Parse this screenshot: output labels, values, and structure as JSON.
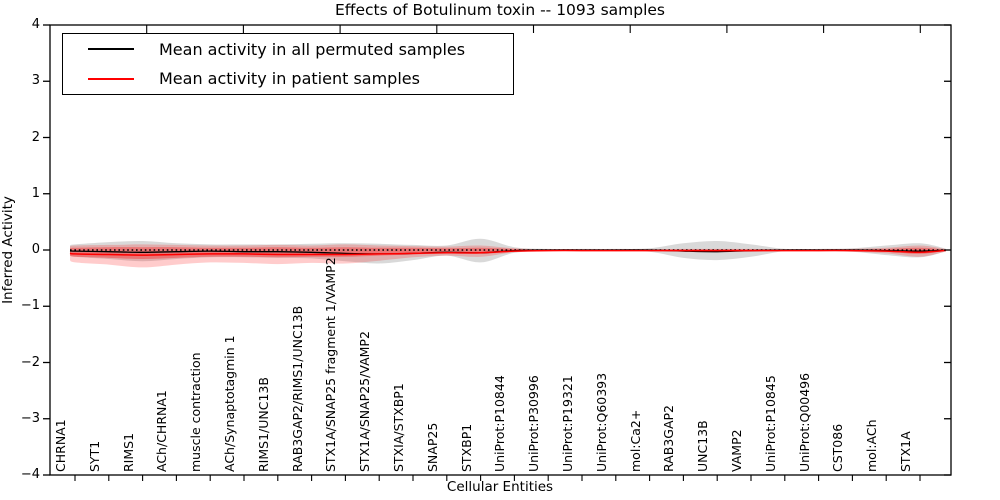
{
  "figure": {
    "background": "#ffffff",
    "frame_color": "#000000"
  },
  "chart_data": {
    "type": "area",
    "title": "Effects of Botulinum toxin -- 1093 samples",
    "xlabel": "Cellular Entities",
    "ylabel": "Inferred Activity",
    "ylim": [
      -4,
      4
    ],
    "yticks": [
      4,
      3,
      2,
      1,
      0,
      -1,
      -2,
      -3,
      -4
    ],
    "ytick_labels": [
      "4",
      "3",
      "2",
      "1",
      "0",
      "−1",
      "−2",
      "−3",
      "−4"
    ],
    "grid": false,
    "legend_position": "upper left",
    "legend": {
      "entries": [
        {
          "label": "Mean activity in all permuted samples",
          "color": "#000000"
        },
        {
          "label": "Mean activity in patient samples",
          "color": "#ff0000"
        }
      ]
    },
    "categories": [
      "CHRNA1",
      "SYT1",
      "RIMS1",
      "ACh/CHRNA1",
      "muscle contraction",
      "ACh/Synaptotagmin 1",
      "RIMS1/UNC13B",
      "RAB3GAP2/RIMS1/UNC13B",
      "STX1A/SNAP25 fragment 1/VAMP2",
      "STX1A/SNAP25/VAMP2",
      "STXIA/STXBP1",
      "SNAP25",
      "STXBP1",
      "UniProt:P10844",
      "UniProt:P30996",
      "UniProt:P19321",
      "UniProt:Q60393",
      "mol:Ca2+",
      "RAB3GAP2",
      "UNC13B",
      "VAMP2",
      "UniProt:P10845",
      "UniProt:Q00496",
      "CST086",
      "mol:ACh",
      "STX1A"
    ],
    "baseline": {
      "y": 0,
      "style": "dotted",
      "color": "#000000"
    },
    "series": [
      {
        "name": "Mean activity in all permuted samples",
        "type": "line",
        "color": "#000000",
        "values": [
          -0.02,
          -0.03,
          -0.04,
          -0.03,
          -0.02,
          -0.03,
          -0.03,
          -0.04,
          -0.06,
          -0.07,
          -0.06,
          -0.04,
          -0.05,
          -0.01,
          0,
          0,
          0,
          0,
          -0.02,
          -0.03,
          -0.01,
          0,
          0,
          0,
          -0.01,
          -0.02
        ]
      },
      {
        "name": "Mean activity in patient samples",
        "type": "line",
        "color": "#ff0000",
        "values": [
          -0.07,
          -0.08,
          -0.09,
          -0.08,
          -0.07,
          -0.07,
          -0.08,
          -0.08,
          -0.08,
          -0.07,
          -0.06,
          -0.05,
          -0.05,
          -0.02,
          -0.01,
          -0.01,
          -0.01,
          -0.01,
          -0.01,
          -0.01,
          -0.01,
          -0.01,
          -0.01,
          -0.01,
          -0.02,
          -0.04
        ]
      }
    ],
    "bands": [
      {
        "name": "permuted-sample-spread",
        "color": "#888888",
        "opacity": 0.32,
        "top": [
          0.1,
          0.14,
          0.16,
          0.12,
          0.1,
          0.1,
          0.1,
          0.11,
          0.12,
          0.11,
          0.09,
          0.08,
          0.2,
          0.05,
          0.02,
          0.02,
          0.02,
          0.03,
          0.12,
          0.16,
          0.1,
          0.02,
          0.02,
          0.03,
          0.08,
          0.12
        ],
        "bottom": [
          -0.12,
          -0.16,
          -0.2,
          -0.16,
          -0.13,
          -0.13,
          -0.14,
          -0.15,
          -0.2,
          -0.24,
          -0.18,
          -0.1,
          -0.22,
          -0.05,
          -0.02,
          -0.02,
          -0.02,
          -0.03,
          -0.14,
          -0.18,
          -0.12,
          -0.02,
          -0.02,
          -0.03,
          -0.09,
          -0.13
        ]
      },
      {
        "name": "patient-sample-spread-outer",
        "color": "#ff0000",
        "opacity": 0.2,
        "top": [
          0.08,
          0.09,
          0.1,
          0.09,
          0.08,
          0.08,
          0.09,
          0.08,
          0.1,
          0.08,
          0.07,
          0.06,
          0.08,
          0.03,
          0.01,
          0.01,
          0.01,
          0.01,
          0.02,
          0.02,
          0.02,
          0.01,
          0.01,
          0.02,
          0.04,
          0.08
        ],
        "bottom": [
          -0.22,
          -0.26,
          -0.31,
          -0.26,
          -0.22,
          -0.23,
          -0.25,
          -0.23,
          -0.24,
          -0.19,
          -0.13,
          -0.1,
          -0.12,
          -0.04,
          -0.02,
          -0.02,
          -0.02,
          -0.02,
          -0.03,
          -0.03,
          -0.03,
          -0.02,
          -0.02,
          -0.03,
          -0.06,
          -0.12
        ]
      },
      {
        "name": "patient-sample-spread-inner",
        "color": "#ff0000",
        "opacity": 0.32,
        "top": [
          0.04,
          0.05,
          0.05,
          0.05,
          0.04,
          0.04,
          0.05,
          0.04,
          0.05,
          0.04,
          0.04,
          0.03,
          0.04,
          0.02,
          0.01,
          0.01,
          0.01,
          0.01,
          0.01,
          0.01,
          0.01,
          0.01,
          0.01,
          0.01,
          0.02,
          0.04
        ],
        "bottom": [
          -0.12,
          -0.14,
          -0.16,
          -0.14,
          -0.12,
          -0.12,
          -0.13,
          -0.12,
          -0.12,
          -0.1,
          -0.08,
          -0.06,
          -0.07,
          -0.03,
          -0.01,
          -0.01,
          -0.01,
          -0.01,
          -0.02,
          -0.02,
          -0.02,
          -0.01,
          -0.01,
          -0.02,
          -0.03,
          -0.07
        ]
      }
    ]
  }
}
